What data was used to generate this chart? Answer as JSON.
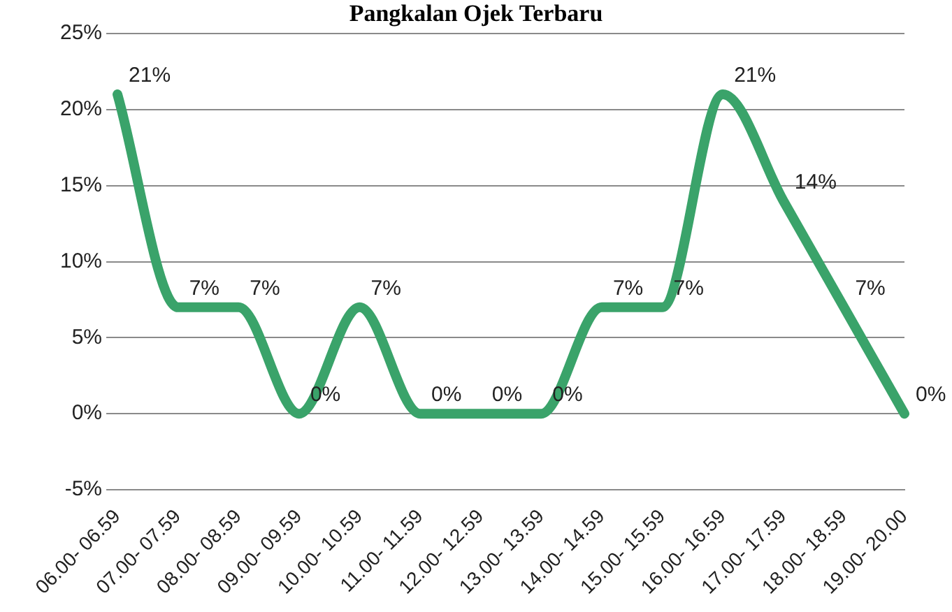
{
  "chart_data": {
    "type": "line",
    "title": "Pangkalan Ojek Terbaru",
    "categories": [
      "06.00- 06.59",
      "07.00- 07.59",
      "08.00- 08.59",
      "09.00- 09.59",
      "10.00- 10.59",
      "11.00- 11.59",
      "12.00- 12.59",
      "13.00- 13.59",
      "14.00- 14.59",
      "15.00- 15.59",
      "16.00- 16.59",
      "17.00- 17.59",
      "18.00- 18.59",
      "19.00- 20.00"
    ],
    "series": [
      {
        "color": "#3aa36a",
        "values": [
          21,
          7,
          7,
          0,
          7,
          0,
          0,
          0,
          7,
          7,
          21,
          14,
          7,
          0
        ],
        "value_labels": [
          "21%",
          "7%",
          "7%",
          "0%",
          "7%",
          "0%",
          "0%",
          "0%",
          "7%",
          "7%",
          "21%",
          "14%",
          "7%",
          "0%"
        ]
      }
    ],
    "ylim": [
      -5,
      25
    ],
    "yticks": [
      {
        "value": -5,
        "label": "-5%"
      },
      {
        "value": 0,
        "label": "0%"
      },
      {
        "value": 5,
        "label": "5%"
      },
      {
        "value": 10,
        "label": "10%"
      },
      {
        "value": 15,
        "label": "15%"
      },
      {
        "value": 20,
        "label": "20%"
      },
      {
        "value": 25,
        "label": "25%"
      }
    ],
    "grid": "y",
    "legend": false,
    "marker": "none",
    "line_style": "solid"
  }
}
